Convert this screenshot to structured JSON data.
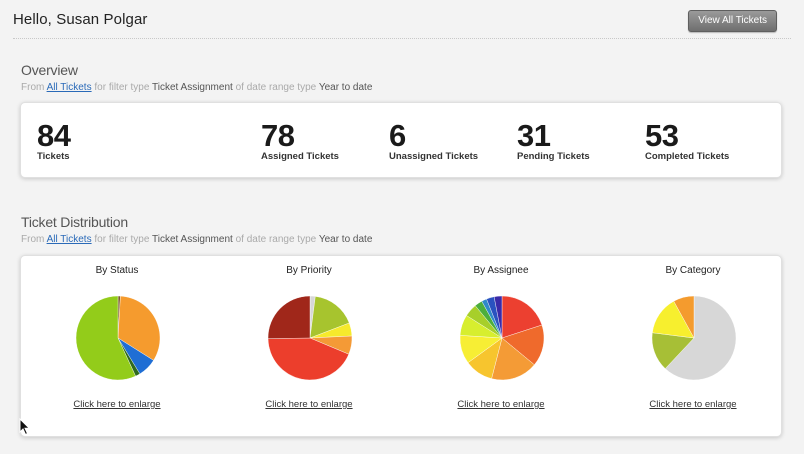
{
  "header": {
    "greeting": "Hello, Susan Polgar",
    "view_all_label": "View All Tickets"
  },
  "overview": {
    "title": "Overview",
    "filter": {
      "prefix": "From",
      "link": "All Tickets",
      "mid1": "for filter type",
      "filter_type": "Ticket Assignment",
      "mid2": "of date range type",
      "range": "Year to date"
    },
    "stats": [
      {
        "value": "84",
        "label": "Tickets"
      },
      {
        "value": "78",
        "label": "Assigned Tickets"
      },
      {
        "value": "6",
        "label": "Unassigned Tickets"
      },
      {
        "value": "31",
        "label": "Pending Tickets"
      },
      {
        "value": "53",
        "label": "Completed Tickets"
      }
    ]
  },
  "distribution": {
    "title": "Ticket Distribution",
    "filter": {
      "prefix": "From",
      "link": "All Tickets",
      "mid1": "for filter type",
      "filter_type": "Ticket Assignment",
      "mid2": "of date range type",
      "range": "Year to date"
    },
    "enlarge_label": "Click here to enlarge",
    "charts": [
      {
        "title": "By Status"
      },
      {
        "title": "By Priority"
      },
      {
        "title": "By Assignee"
      },
      {
        "title": "By Category"
      }
    ]
  },
  "chart_data": [
    {
      "type": "pie",
      "title": "By Status",
      "values": [
        1,
        36,
        8,
        2,
        62
      ],
      "colors": [
        "#7a5a2a",
        "#f59b2e",
        "#1f6ed4",
        "#2f6a1e",
        "#93cc1a"
      ]
    },
    {
      "type": "pie",
      "title": "By Priority",
      "values": [
        2,
        17,
        5,
        7,
        43,
        25
      ],
      "colors": [
        "#d7d7d7",
        "#a7c42e",
        "#f6ea2c",
        "#f49a36",
        "#ec3e2c",
        "#a0271a"
      ]
    },
    {
      "type": "pie",
      "title": "By Assignee",
      "values": [
        20,
        16,
        18,
        11,
        11,
        8,
        5,
        3,
        2,
        3,
        3
      ],
      "colors": [
        "#ec4030",
        "#ef6a2c",
        "#f49b36",
        "#f7c52e",
        "#f7ee34",
        "#d7ee2e",
        "#a7cf2a",
        "#4cae3c",
        "#2f8ac8",
        "#2a52c0",
        "#3a2aa8"
      ]
    },
    {
      "type": "pie",
      "title": "By Category",
      "values": [
        62,
        15,
        15,
        8
      ],
      "colors": [
        "#d7d7d7",
        "#a7bf36",
        "#f7ef2e",
        "#f49b2e"
      ]
    }
  ]
}
